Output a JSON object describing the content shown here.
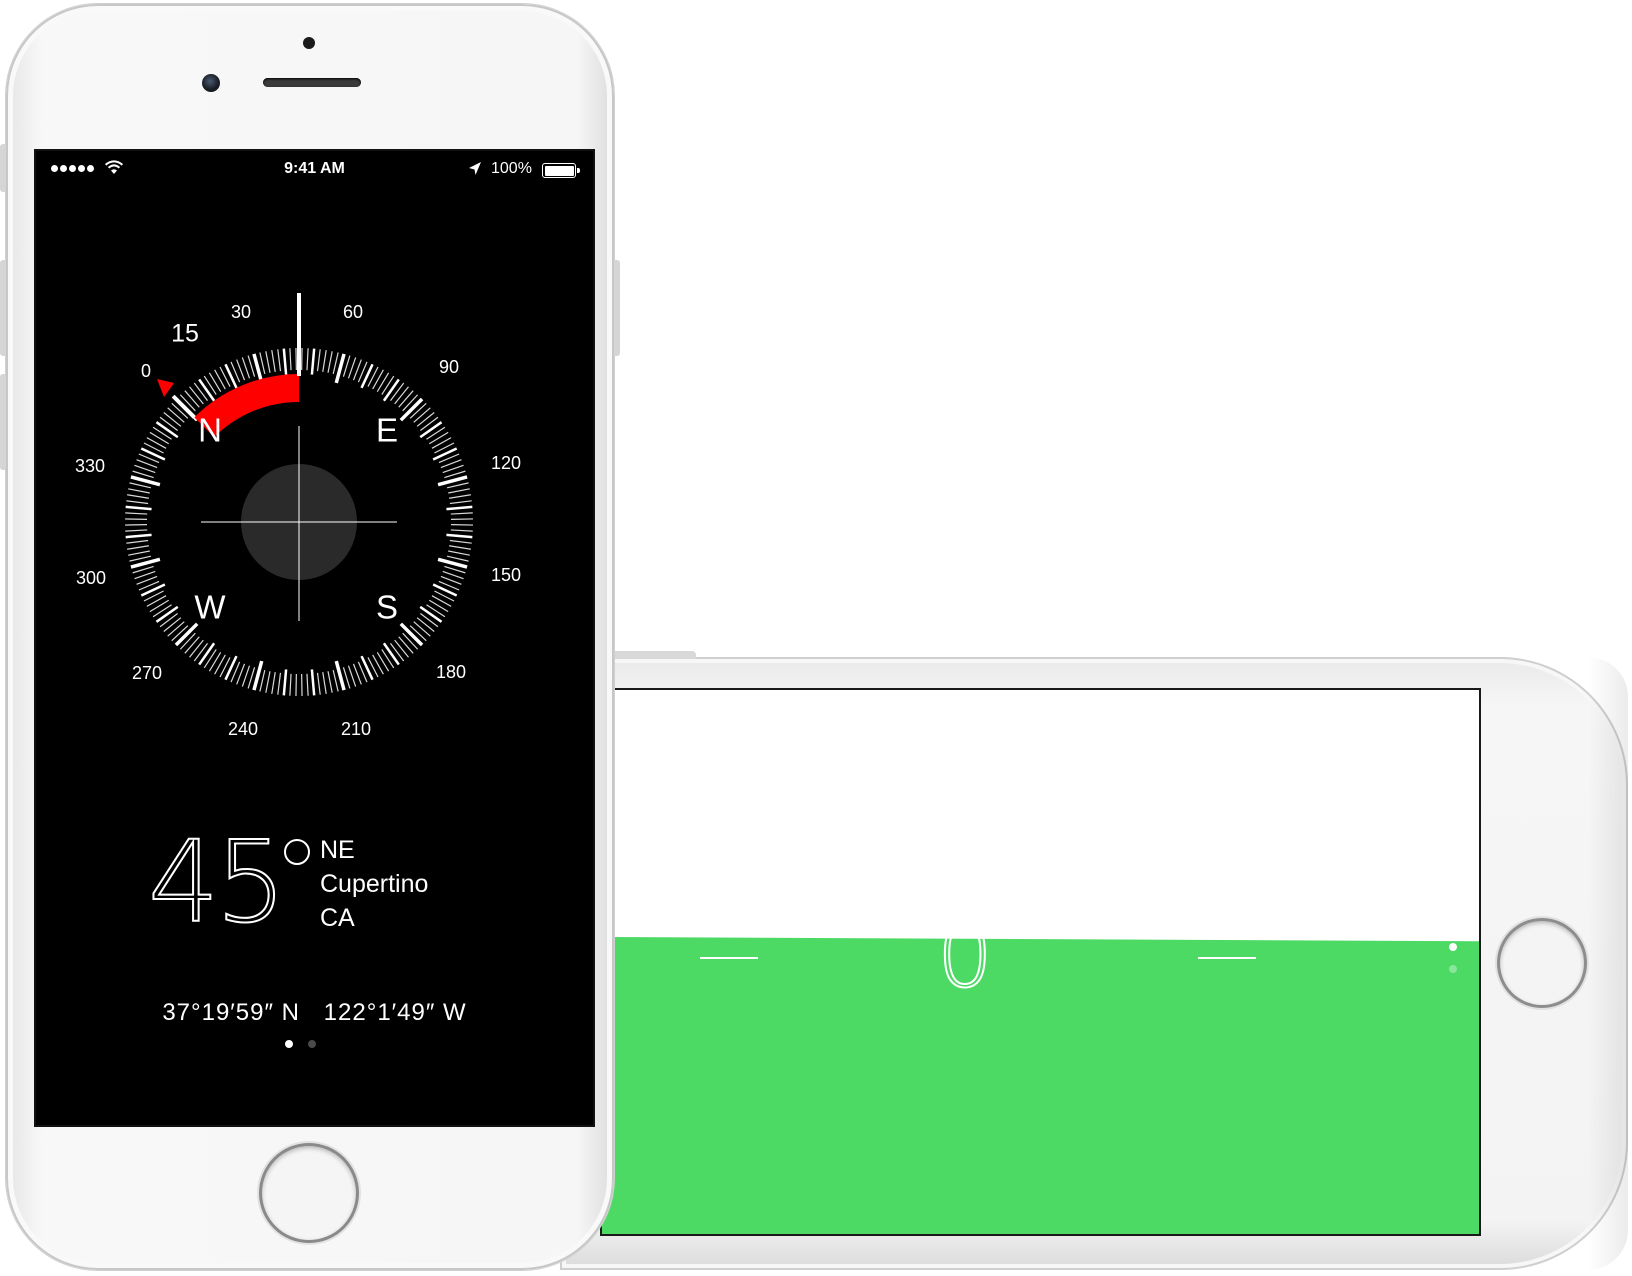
{
  "colors": {
    "level_green": "#4cd964",
    "compass_red": "#ff0000",
    "screen_black": "#000000",
    "white": "#ffffff"
  },
  "status_bar": {
    "time": "9:41 AM",
    "battery_percent": "100%",
    "signal_bars": 5,
    "battery_level": 1.0
  },
  "compass": {
    "heading_degrees": 45,
    "heading_value": "45",
    "heading_direction": "NE",
    "city": "Cupertino",
    "region": "CA",
    "latitude": "37°19′59″ N",
    "longitude": "122°1′49″ W",
    "bearing_marker_label": "15",
    "cardinals": [
      {
        "label": "N",
        "bearing": 0
      },
      {
        "label": "E",
        "bearing": 90
      },
      {
        "label": "S",
        "bearing": 180
      },
      {
        "label": "W",
        "bearing": 270
      }
    ],
    "degree_labels": [
      "0",
      "30",
      "60",
      "90",
      "120",
      "150",
      "180",
      "210",
      "240",
      "270",
      "300",
      "330"
    ],
    "red_arc_label": "heading deviation",
    "page_count": 2,
    "active_page": 0
  },
  "level": {
    "angle_value": "0",
    "page_count": 2,
    "active_page": 0
  }
}
